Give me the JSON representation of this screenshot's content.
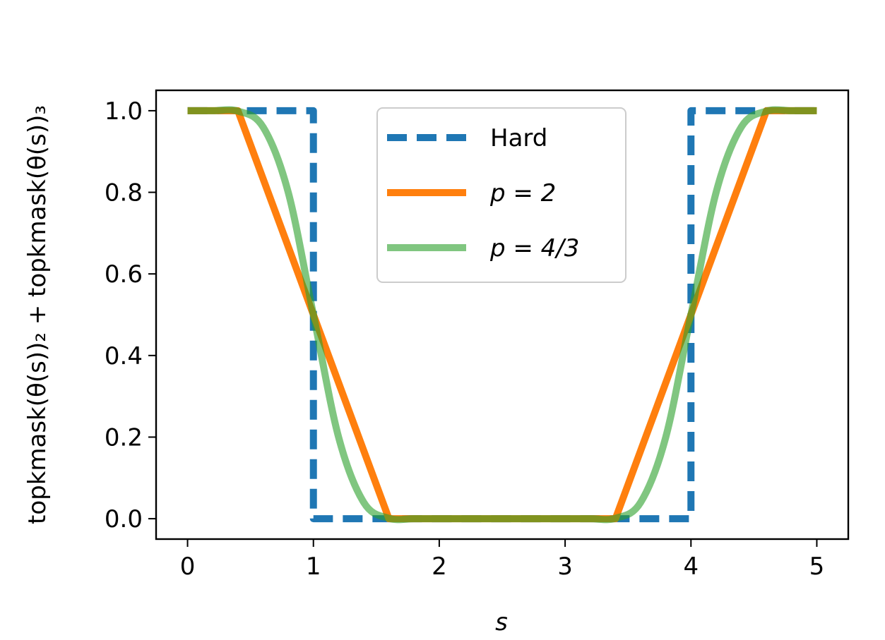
{
  "chart_data": {
    "type": "line",
    "title": "",
    "xlabel": "s",
    "ylabel": "topkmask(θ(s))₂ + topkmask(θ(s))₃",
    "xlim": [
      -0.25,
      5.25
    ],
    "ylim": [
      -0.05,
      1.05
    ],
    "xticks": [
      0,
      1,
      2,
      3,
      4,
      5
    ],
    "xtick_labels": [
      "0",
      "1",
      "2",
      "3",
      "4",
      "5"
    ],
    "yticks": [
      0.0,
      0.2,
      0.4,
      0.6,
      0.8,
      1.0
    ],
    "ytick_labels": [
      "0.0",
      "0.2",
      "0.4",
      "0.6",
      "0.8",
      "1.0"
    ],
    "grid": false,
    "legend_position": "upper-center",
    "series": [
      {
        "name": "Hard",
        "legend_label": "Hard",
        "color": "#1f77b4",
        "style": "dashed",
        "x": [
          0,
          1,
          1,
          4,
          4,
          5
        ],
        "y": [
          1,
          1,
          0,
          0,
          1,
          1
        ]
      },
      {
        "name": "p = 2",
        "legend_label": "p = 2",
        "color": "#ff7f0e",
        "style": "solid",
        "x": [
          0,
          0.4,
          1.6,
          3.4,
          4.6,
          5
        ],
        "y": [
          1,
          1,
          0,
          0,
          1,
          1
        ]
      },
      {
        "name": "p = 4/3",
        "legend_label": "p = 4/3",
        "color": "#2ca02c",
        "opacity": 0.6,
        "style": "solid",
        "x": [
          0,
          0.2,
          0.4,
          0.6,
          0.8,
          1.0,
          1.2,
          1.4,
          1.6,
          1.8,
          2.0,
          2.5,
          3.0,
          3.2,
          3.4,
          3.6,
          3.8,
          4.0,
          4.2,
          4.4,
          4.6,
          4.8,
          5.0
        ],
        "y": [
          1,
          1,
          0.999,
          0.96,
          0.8,
          0.5,
          0.2,
          0.04,
          0.001,
          0,
          0,
          0,
          0,
          0,
          0.001,
          0.04,
          0.2,
          0.5,
          0.8,
          0.96,
          0.999,
          1,
          1
        ]
      }
    ]
  }
}
